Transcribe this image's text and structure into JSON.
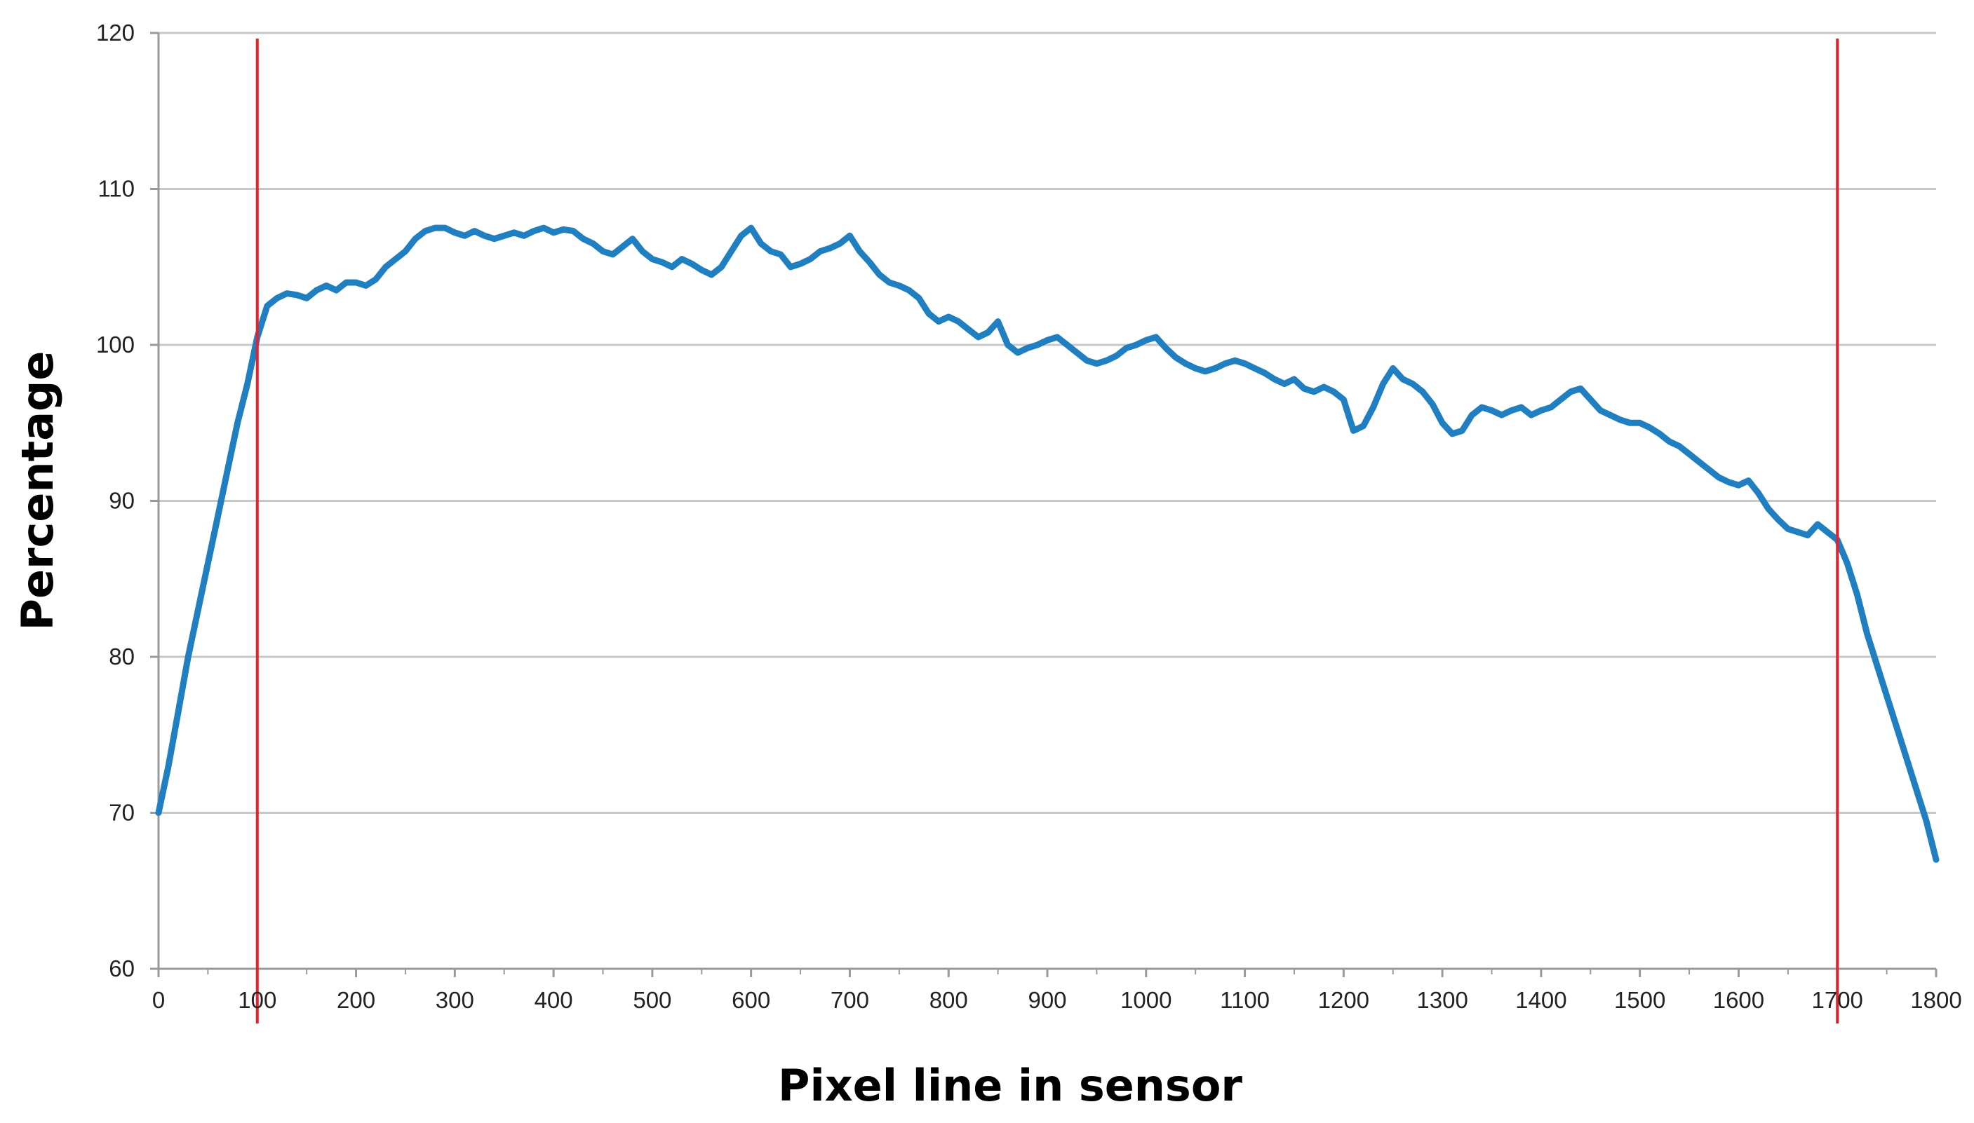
{
  "chart_data": {
    "type": "line",
    "title": "",
    "xlabel": "Pixel line in sensor",
    "ylabel": "Percentage",
    "xlim": [
      0,
      1800
    ],
    "ylim": [
      60,
      120
    ],
    "x_ticks": [
      0,
      100,
      200,
      300,
      400,
      500,
      600,
      700,
      800,
      900,
      1000,
      1100,
      1200,
      1300,
      1400,
      1500,
      1600,
      1700,
      1800
    ],
    "x_tick_labels": [
      "0",
      "100",
      "200",
      "300",
      "400",
      "500",
      "600",
      "700",
      "800",
      "900",
      "1000",
      "1100",
      "1200",
      "1300",
      "1400",
      "1500",
      "1600",
      "1700",
      "1800"
    ],
    "y_ticks": [
      60,
      70,
      80,
      90,
      100,
      110,
      120
    ],
    "y_tick_labels": [
      "60",
      "70",
      "80",
      "90",
      "100",
      "110",
      "120"
    ],
    "grid": "horizontal",
    "legend": "none",
    "series_color": "#1f7fc1",
    "reference_line_color": "#e8202a",
    "reference_lines_x": [
      100,
      1700
    ],
    "series": [
      {
        "x": [
          0,
          10,
          20,
          30,
          40,
          50,
          60,
          70,
          80,
          90,
          100,
          110,
          120,
          130,
          140,
          150,
          160,
          170,
          180,
          190,
          200,
          210,
          220,
          230,
          240,
          250,
          260,
          270,
          280,
          290,
          300,
          310,
          320,
          330,
          340,
          350,
          360,
          370,
          380,
          390,
          400,
          410,
          420,
          430,
          440,
          450,
          460,
          470,
          480,
          490,
          500,
          510,
          520,
          530,
          540,
          550,
          560,
          570,
          580,
          590,
          600,
          610,
          620,
          630,
          640,
          650,
          660,
          670,
          680,
          690,
          700,
          710,
          720,
          730,
          740,
          750,
          760,
          770,
          780,
          790,
          800,
          810,
          820,
          830,
          840,
          850,
          860,
          870,
          880,
          890,
          900,
          910,
          920,
          930,
          940,
          950,
          960,
          970,
          980,
          990,
          1000,
          1010,
          1020,
          1030,
          1040,
          1050,
          1060,
          1070,
          1080,
          1090,
          1100,
          1110,
          1120,
          1130,
          1140,
          1150,
          1160,
          1170,
          1180,
          1190,
          1200,
          1210,
          1220,
          1230,
          1240,
          1250,
          1260,
          1270,
          1280,
          1290,
          1300,
          1310,
          1320,
          1330,
          1340,
          1350,
          1360,
          1370,
          1380,
          1390,
          1400,
          1410,
          1420,
          1430,
          1440,
          1450,
          1460,
          1470,
          1480,
          1490,
          1500,
          1510,
          1520,
          1530,
          1540,
          1550,
          1560,
          1570,
          1580,
          1590,
          1600,
          1610,
          1620,
          1630,
          1640,
          1650,
          1660,
          1670,
          1680,
          1690,
          1700,
          1710,
          1720,
          1730,
          1740,
          1750,
          1760,
          1770,
          1780,
          1790,
          1800
        ],
        "y": [
          70.0,
          73.0,
          76.5,
          80.0,
          83.0,
          86.0,
          89.0,
          92.0,
          95.0,
          97.5,
          100.5,
          102.5,
          103.0,
          103.3,
          103.2,
          103.0,
          103.5,
          103.8,
          103.5,
          104.0,
          104.0,
          103.8,
          104.2,
          105.0,
          105.5,
          106.0,
          106.8,
          107.3,
          107.5,
          107.5,
          107.2,
          107.0,
          107.3,
          107.0,
          106.8,
          107.0,
          107.2,
          107.0,
          107.3,
          107.5,
          107.2,
          107.4,
          107.3,
          106.8,
          106.5,
          106.0,
          105.8,
          106.3,
          106.8,
          106.0,
          105.5,
          105.3,
          105.0,
          105.5,
          105.2,
          104.8,
          104.5,
          105.0,
          106.0,
          107.0,
          107.5,
          106.5,
          106.0,
          105.8,
          105.0,
          105.2,
          105.5,
          106.0,
          106.2,
          106.5,
          107.0,
          106.0,
          105.3,
          104.5,
          104.0,
          103.8,
          103.5,
          103.0,
          102.0,
          101.5,
          101.8,
          101.5,
          101.0,
          100.5,
          100.8,
          101.5,
          100.0,
          99.5,
          99.8,
          100.0,
          100.3,
          100.5,
          100.0,
          99.5,
          99.0,
          98.8,
          99.0,
          99.3,
          99.8,
          100.0,
          100.3,
          100.5,
          99.8,
          99.2,
          98.8,
          98.5,
          98.3,
          98.5,
          98.8,
          99.0,
          98.8,
          98.5,
          98.2,
          97.8,
          97.5,
          97.8,
          97.2,
          97.0,
          97.3,
          97.0,
          96.5,
          94.5,
          94.8,
          96.0,
          97.5,
          98.5,
          97.8,
          97.5,
          97.0,
          96.2,
          95.0,
          94.3,
          94.5,
          95.5,
          96.0,
          95.8,
          95.5,
          95.8,
          96.0,
          95.5,
          95.8,
          96.0,
          96.5,
          97.0,
          97.2,
          96.5,
          95.8,
          95.5,
          95.2,
          95.0,
          95.0,
          94.7,
          94.3,
          93.8,
          93.5,
          93.0,
          92.5,
          92.0,
          91.5,
          91.2,
          91.0,
          91.3,
          90.5,
          89.5,
          88.8,
          88.2,
          88.0,
          87.8,
          88.5,
          88.0,
          87.5,
          86.0,
          84.0,
          81.5,
          79.5,
          77.5,
          75.5,
          73.5,
          71.5,
          69.5,
          67.0
        ]
      }
    ]
  }
}
